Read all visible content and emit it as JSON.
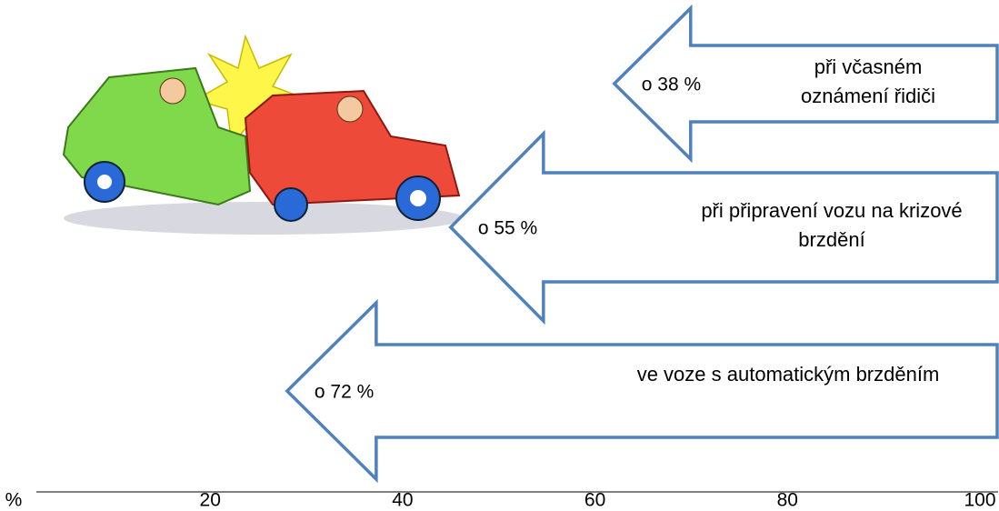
{
  "chart_data": {
    "type": "arrow",
    "categories": [
      "při včasném oznámení řidiči",
      "při připravení vozu na krizové brzdění",
      "ve voze s automatickým brzděním"
    ],
    "values": [
      38,
      55,
      72
    ],
    "value_labels": [
      "o 38 %",
      "o 55 %",
      "o 72 %"
    ],
    "color": "#4f81bd",
    "x_label": "%",
    "xlim": [
      0,
      100
    ],
    "xticks": [
      20,
      40,
      60,
      80,
      100
    ]
  }
}
